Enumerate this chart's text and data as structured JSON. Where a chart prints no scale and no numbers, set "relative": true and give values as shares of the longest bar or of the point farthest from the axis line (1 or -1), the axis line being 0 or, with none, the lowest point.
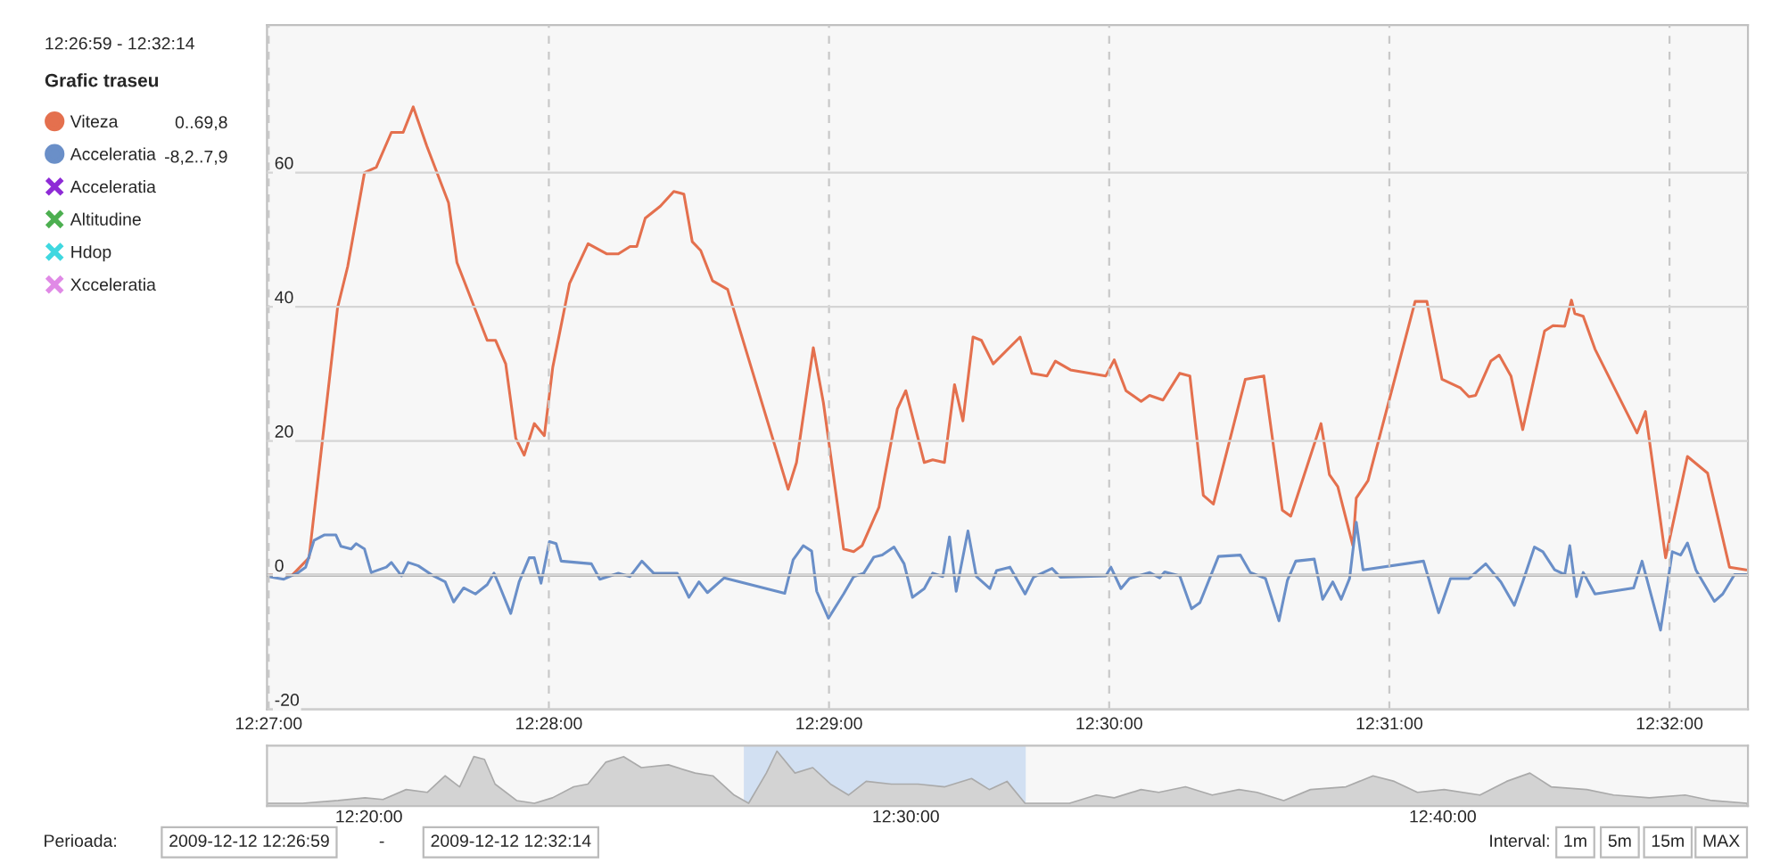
{
  "chart_data": [
    {
      "type": "line",
      "title": "Grafic traseu",
      "subtitle": "12:26:59 - 12:32:14",
      "series": [
        {
          "name": "Viteza",
          "color": "#e4704e",
          "x": [
            12.45,
            12.4514,
            12.4524,
            12.4541,
            12.4547,
            12.4557,
            12.4564,
            12.4573,
            12.458,
            12.4586,
            12.4594,
            12.4607,
            12.4612,
            12.463,
            12.4635,
            12.4641,
            12.4647,
            12.4652,
            12.4658,
            12.4664,
            12.4669,
            12.4679,
            12.469,
            12.4701,
            12.4708,
            12.4715,
            12.4719,
            12.4724,
            12.4733,
            12.4741,
            12.4747,
            12.4752,
            12.4757,
            12.4764,
            12.4773,
            12.4809,
            12.4814,
            12.4824,
            12.483,
            12.4842,
            12.4848,
            12.4853,
            12.4863,
            12.4874,
            12.4879,
            12.489,
            12.4895,
            12.4902,
            12.4908,
            12.4913,
            12.4919,
            12.4924,
            12.4931,
            12.4947,
            12.4954,
            12.4963,
            12.4968,
            12.4977,
            12.4998,
            12.5003,
            12.501,
            12.5019,
            12.5024,
            12.5032,
            12.5042,
            12.5048,
            12.5056,
            12.5062,
            12.5081,
            12.5092,
            12.5103,
            12.5108,
            12.5126,
            12.5131,
            12.5136,
            12.5145,
            12.5147,
            12.5154,
            12.5182,
            12.5189,
            12.5198,
            12.5209,
            12.5214,
            12.5218,
            12.5227,
            12.5232,
            12.5239,
            12.5246,
            12.5259,
            12.5264,
            12.5271,
            12.5275,
            12.5277,
            12.5282,
            12.5289,
            12.5314,
            12.5319,
            12.5331,
            12.5344,
            12.5356,
            12.5369,
            12.5379
          ],
          "values": [
            0,
            0,
            2.6,
            39.9,
            46,
            60,
            60.8,
            66,
            66,
            69.8,
            64,
            55.5,
            46.6,
            35,
            35,
            31.5,
            20.4,
            17.9,
            22.6,
            20.8,
            31,
            43.5,
            49.4,
            47.9,
            47.9,
            49,
            49,
            53.2,
            55,
            57.2,
            56.8,
            49.7,
            48.4,
            43.9,
            42.6,
            12.8,
            16.8,
            33.9,
            25.7,
            3.9,
            3.5,
            4.4,
            10.1,
            24.8,
            27.5,
            16.8,
            17.2,
            16.8,
            28.4,
            23,
            35.5,
            35,
            31.5,
            35.5,
            30.1,
            29.7,
            31.9,
            30.6,
            29.7,
            32.1,
            27.5,
            25.9,
            26.8,
            26.1,
            30.1,
            29.7,
            11.9,
            10.6,
            29.2,
            29.7,
            9.7,
            8.8,
            22.6,
            15,
            13.2,
            4.4,
            11.5,
            14.1,
            40.8,
            40.8,
            29.2,
            27.9,
            26.6,
            26.8,
            31.9,
            32.8,
            29.7,
            21.7,
            36.4,
            37.2,
            37.1,
            41,
            39,
            38.6,
            33.7,
            21.2,
            24.4,
            2.6,
            17.7,
            15.2,
            1.2,
            0.8
          ]
        },
        {
          "name": "Acceleratia",
          "color": "#6a8fc8",
          "x": [
            12.45,
            12.4509,
            12.4517,
            12.4522,
            12.4527,
            12.4533,
            12.454,
            12.4543,
            12.4549,
            12.4552,
            12.4557,
            12.4561,
            12.457,
            12.4573,
            12.4579,
            12.4583,
            12.4589,
            12.4598,
            12.4605,
            12.461,
            12.4616,
            12.4623,
            12.463,
            12.4634,
            12.4637,
            12.4644,
            12.4649,
            12.4655,
            12.4658,
            12.4662,
            12.4667,
            12.4671,
            12.4674,
            12.4692,
            12.4697,
            12.4708,
            12.4715,
            12.4722,
            12.4729,
            12.4743,
            12.475,
            12.4756,
            12.4761,
            12.4771,
            12.4807,
            12.4812,
            12.4818,
            12.4823,
            12.4826,
            12.4833,
            12.4842,
            12.4848,
            12.4854,
            12.486,
            12.4865,
            12.4872,
            12.4878,
            12.4883,
            12.489,
            12.4895,
            12.4901,
            12.4905,
            12.4909,
            12.4916,
            12.4921,
            12.4929,
            12.4933,
            12.4941,
            12.495,
            12.4955,
            12.4966,
            12.4971,
            12.4998,
            12.5001,
            12.5007,
            12.5012,
            12.5024,
            12.503,
            12.5033,
            12.5042,
            12.5049,
            12.5054,
            12.5065,
            12.5078,
            12.5084,
            12.5093,
            12.5101,
            12.5106,
            12.5111,
            12.5122,
            12.5127,
            12.5133,
            12.5138,
            12.5143,
            12.5147,
            12.5151,
            12.5187,
            12.5196,
            12.5203,
            12.5214,
            12.5224,
            12.5233,
            12.5241,
            12.5246,
            12.5253,
            12.5258,
            12.5265,
            12.5271,
            12.5274,
            12.5278,
            12.5282,
            12.5289,
            12.5312,
            12.5317,
            12.5328,
            12.5335,
            12.534,
            12.5344,
            12.5349,
            12.536,
            12.5365,
            12.5372,
            12.5379
          ],
          "values": [
            -0.2,
            -0.6,
            0.3,
            1.2,
            5.2,
            6,
            6,
            4.3,
            3.9,
            4.7,
            3.9,
            0.4,
            1.2,
            1.9,
            -0.1,
            1.9,
            1.4,
            -0.1,
            -1,
            -4,
            -1.9,
            -2.8,
            -1.4,
            0.3,
            -1.4,
            -5.7,
            -1,
            2.6,
            2.6,
            -1.2,
            5,
            4.7,
            2.1,
            1.7,
            -0.6,
            0.3,
            -0.2,
            2.1,
            0.3,
            0.3,
            -3.3,
            -1,
            -2.6,
            -0.4,
            -2.7,
            2.3,
            4.4,
            3.6,
            -2.4,
            -6.4,
            -2.8,
            -0.2,
            0.3,
            2.7,
            3,
            4.2,
            1.7,
            -3.3,
            -2,
            0.3,
            -0.2,
            5.7,
            -2.4,
            6.6,
            -0.2,
            -2,
            0.7,
            1.2,
            -2.8,
            -0.3,
            1,
            -0.3,
            -0.1,
            1.2,
            -2,
            -0.5,
            0.4,
            -0.4,
            0.5,
            -0.1,
            -5,
            -4.1,
            2.8,
            3,
            0.4,
            -0.5,
            -6.8,
            -0.8,
            2.1,
            2.4,
            -3.6,
            -1,
            -3.6,
            -0.5,
            7.9,
            0.8,
            2.1,
            -5.6,
            -0.5,
            -0.5,
            1.7,
            -1,
            -4.5,
            -1,
            4.2,
            3.5,
            0.8,
            0.1,
            4.4,
            -3.2,
            0.4,
            -2.8,
            -1.9,
            2.1,
            -8.2,
            3.5,
            3,
            4.8,
            0.8,
            -3.9,
            -2.8,
            0.1,
            0.1
          ]
        },
        {
          "name": "Acceleratia",
          "color": "#8e2bd6",
          "marker": "cross"
        },
        {
          "name": "Altitudine",
          "color": "#4caf50",
          "marker": "cross"
        },
        {
          "name": "Hdop",
          "color": "#3fd8e0",
          "marker": "cross"
        },
        {
          "name": "Xcceleratia",
          "color": "#e08ae6",
          "marker": "cross"
        }
      ],
      "xlim": [
        12.4499,
        12.538
      ],
      "xticks": [
        {
          "value": 12.45,
          "label": "12:27:00"
        },
        {
          "value": 12.466667,
          "label": "12:28:00"
        },
        {
          "value": 12.483333,
          "label": "12:29:00"
        },
        {
          "value": 12.5,
          "label": "12:30:00"
        },
        {
          "value": 12.516667,
          "label": "12:31:00"
        },
        {
          "value": 12.533333,
          "label": "12:32:00"
        }
      ],
      "ylim": [
        -20,
        82
      ],
      "yticks": [
        -20,
        0,
        20,
        40,
        60
      ],
      "grid": true,
      "legend": "left",
      "ref_lines": [
        {
          "axis": "y",
          "value": 0,
          "color": "#666666"
        }
      ],
      "annotations": [
        "0..69,8",
        "-8,2..7,9",
        "Perioada:",
        "2009-12-12 12:26:59",
        "-",
        "2009-12-12 12:32:14",
        "Interval:",
        "1m",
        "5m",
        "15m",
        "MAX"
      ]
    },
    {
      "type": "area",
      "relative": true,
      "tick_labels": "x",
      "series": [
        {
          "color": "#d3d3d3",
          "x": [
            12.3017,
            12.3127,
            12.3238,
            12.3321,
            12.3377,
            12.3449,
            12.3515,
            12.357,
            12.3615,
            12.3659,
            12.3692,
            12.3725,
            12.3792,
            12.3847,
            12.3903,
            12.3969,
            12.4013,
            12.4069,
            12.4124,
            12.4179,
            12.4263,
            12.4346,
            12.4401,
            12.4467,
            12.4512,
            12.4567,
            12.46,
            12.4656,
            12.4711,
            12.4766,
            12.4822,
            12.4877,
            12.4955,
            12.5038,
            12.5121,
            12.5204,
            12.5259,
            12.5314,
            12.537,
            12.5508,
            12.5591,
            12.5647,
            12.573,
            12.5785,
            12.5868,
            12.5951,
            12.6034,
            12.609,
            12.6173,
            12.6256,
            12.6366,
            12.645,
            12.6516,
            12.6588,
            12.6671,
            12.6782,
            12.6865,
            12.6937,
            12.7003,
            12.7114,
            12.7197,
            12.7308,
            12.7419,
            12.7502,
            12.7612
          ],
          "values": [
            0.05,
            0.05,
            0.1,
            0.15,
            0.12,
            0.3,
            0.25,
            0.55,
            0.35,
            0.9,
            0.85,
            0.4,
            0.1,
            0.05,
            0.15,
            0.35,
            0.4,
            0.8,
            0.9,
            0.7,
            0.75,
            0.6,
            0.55,
            0.2,
            0.05,
            0.6,
            1,
            0.6,
            0.7,
            0.4,
            0.2,
            0.45,
            0.4,
            0.4,
            0.35,
            0.5,
            0.3,
            0.45,
            0.05,
            0.05,
            0.2,
            0.15,
            0.3,
            0.25,
            0.35,
            0.2,
            0.3,
            0.25,
            0.1,
            0.3,
            0.35,
            0.55,
            0.45,
            0.25,
            0.3,
            0.2,
            0.45,
            0.6,
            0.35,
            0.3,
            0.2,
            0.15,
            0.2,
            0.1,
            0.05
          ]
        }
      ],
      "xlim": [
        12.3017,
        12.7614
      ],
      "xticks": [
        {
          "value": 12.333333,
          "label": "12:20:00"
        },
        {
          "value": 12.5,
          "label": "12:30:00"
        },
        {
          "value": 12.666667,
          "label": "12:40:00"
        }
      ],
      "bands": [
        {
          "axis": "x",
          "from": 12.449722,
          "to": 12.537222,
          "color": "#b9d0ee"
        }
      ]
    }
  ]
}
